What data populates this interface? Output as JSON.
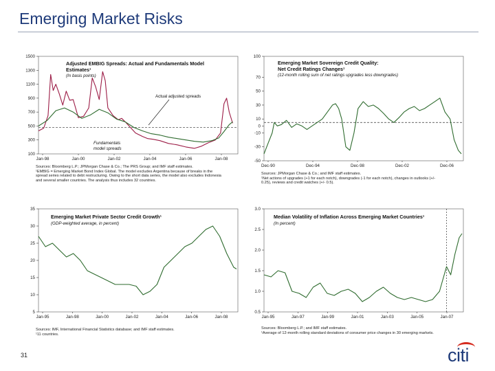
{
  "page": {
    "title": "Emerging Market Risks",
    "page_number": "31",
    "logo_text": "citi"
  },
  "chart_data": [
    {
      "id": "c1",
      "type": "line",
      "title": "Adjusted EMBIG Spreads: Actual and Fundamentals Model Estimates¹",
      "subtitle": "(In basis points)",
      "ylim": [
        100,
        1500
      ],
      "yticks": [
        100,
        300,
        500,
        700,
        900,
        1100,
        1300,
        1500
      ],
      "xticks": [
        "Jan-98",
        "Jan-00",
        "Jan-02",
        "Jan-04",
        "Jan-06",
        "Jan-08"
      ],
      "x_start": 1998,
      "x_end": 2009.5,
      "series": [
        {
          "role": "actual",
          "color": "#9b1b45",
          "x": [
            1998.0,
            1998.3,
            1998.55,
            1998.7,
            1998.85,
            1999.0,
            1999.2,
            1999.4,
            1999.6,
            1999.8,
            2000.0,
            2000.3,
            2000.6,
            2000.9,
            2001.1,
            2001.3,
            2001.5,
            2001.7,
            2001.85,
            2002.0,
            2002.3,
            2002.6,
            2002.8,
            2003.0,
            2003.3,
            2003.6,
            2004.0,
            2004.3,
            2004.6,
            2005.0,
            2005.5,
            2006.0,
            2006.5,
            2007.0,
            2007.4,
            2007.8,
            2008.2,
            2008.5,
            2008.7,
            2008.85,
            2009.0,
            2009.2
          ],
          "values": [
            430,
            470,
            650,
            1240,
            1010,
            1100,
            960,
            800,
            1000,
            870,
            880,
            620,
            640,
            760,
            1190,
            1060,
            880,
            1280,
            1150,
            760,
            650,
            590,
            610,
            560,
            480,
            400,
            350,
            320,
            310,
            290,
            250,
            230,
            200,
            180,
            210,
            260,
            300,
            400,
            820,
            900,
            700,
            540
          ]
        },
        {
          "role": "model",
          "color": "#2e6b2e",
          "x": [
            1998.0,
            1998.5,
            1999.0,
            1999.5,
            2000.0,
            2000.5,
            2001.0,
            2001.5,
            2002.0,
            2002.5,
            2003.0,
            2003.5,
            2004.0,
            2004.5,
            2005.0,
            2005.5,
            2006.0,
            2006.5,
            2007.0,
            2007.5,
            2008.0,
            2008.4,
            2008.7,
            2009.0,
            2009.2
          ],
          "values": [
            500,
            580,
            720,
            760,
            700,
            610,
            660,
            740,
            690,
            600,
            560,
            480,
            430,
            390,
            370,
            340,
            320,
            300,
            280,
            270,
            290,
            330,
            420,
            520,
            560
          ]
        }
      ],
      "reference_y": 480
    },
    {
      "id": "c2",
      "type": "line",
      "title": "Emerging Market Sovereign Credit Quality:",
      "title2": "Net Credit Ratings Changes¹",
      "subtitle": "(12-month rolling sum of net ratings upgrades less downgrades)",
      "ylim": [
        -50,
        100
      ],
      "yticks": [
        -50,
        -30,
        -10,
        0,
        10,
        30,
        50,
        70,
        100
      ],
      "xticks": [
        "Dec-90",
        "Dec-94",
        "Dec-98",
        "Dec-02",
        "Dec-06"
      ],
      "x_start": 1990,
      "x_end": 2009.5,
      "series": [
        {
          "role": "net",
          "color": "#2e6b2e",
          "x": [
            1990.0,
            1990.4,
            1990.8,
            1991.0,
            1991.3,
            1991.7,
            1992.2,
            1992.7,
            1993.2,
            1993.7,
            1994.2,
            1994.7,
            1995.2,
            1995.7,
            1996.2,
            1996.7,
            1997.0,
            1997.3,
            1997.6,
            1998.0,
            1998.4,
            1998.8,
            1999.2,
            1999.7,
            2000.2,
            2000.7,
            2001.2,
            2001.7,
            2002.2,
            2002.7,
            2003.2,
            2003.7,
            2004.2,
            2004.7,
            2005.2,
            2005.7,
            2006.2,
            2006.7,
            2007.2,
            2007.7,
            2008.2,
            2008.6,
            2009.0,
            2009.3
          ],
          "values": [
            -40,
            -25,
            -10,
            5,
            0,
            2,
            8,
            -2,
            3,
            0,
            -5,
            0,
            5,
            10,
            20,
            30,
            32,
            25,
            10,
            -30,
            -35,
            -10,
            25,
            35,
            28,
            30,
            25,
            18,
            10,
            5,
            12,
            20,
            25,
            28,
            22,
            25,
            30,
            35,
            40,
            20,
            10,
            -20,
            -35,
            -40
          ]
        }
      ],
      "reference_y": 5
    },
    {
      "id": "c3",
      "type": "line",
      "title": "Emerging Market Private Sector Credit Growth¹",
      "subtitle": "(GDP-weighted average, in percent)",
      "ylim": [
        5,
        35
      ],
      "yticks": [
        5,
        10,
        15,
        20,
        25,
        30,
        35
      ],
      "xticks": [
        "Jan-95",
        "Jan-98",
        "Jan-00",
        "Jan-02",
        "Jan-04",
        "Jan-06",
        "Jan-08"
      ],
      "x_start": 1995,
      "x_end": 2009.3,
      "series": [
        {
          "role": "growth",
          "color": "#2e6b2e",
          "x": [
            1995.0,
            1995.5,
            1996.0,
            1996.5,
            1997.0,
            1997.5,
            1998.0,
            1998.5,
            1999.0,
            1999.5,
            2000.0,
            2000.5,
            2001.0,
            2001.5,
            2002.0,
            2002.5,
            2003.0,
            2003.5,
            2004.0,
            2004.5,
            2005.0,
            2005.5,
            2006.0,
            2006.5,
            2007.0,
            2007.5,
            2008.0,
            2008.5,
            2009.0,
            2009.2
          ],
          "values": [
            27,
            24,
            25,
            23,
            21,
            22,
            20,
            17,
            16,
            15,
            14,
            13,
            13,
            13,
            12.5,
            10,
            11,
            13,
            18,
            20,
            22,
            24,
            25,
            27,
            29,
            30,
            27,
            22,
            18,
            17.5
          ]
        }
      ]
    },
    {
      "id": "c4",
      "type": "line",
      "title": "Median Volatility of Inflation Across Emerging Market Countries¹",
      "subtitle": "(In percent)",
      "ylim": [
        0.5,
        3.0
      ],
      "yticks": [
        0.5,
        1.0,
        1.5,
        2.0,
        2.5,
        3.0
      ],
      "yticklabels": [
        "0.5",
        "1.0",
        "1.5",
        "2.0",
        "2.5",
        "3.0"
      ],
      "xticks": [
        "Jan-95",
        "Jan-97",
        "Jan-99",
        "Jan-01",
        "Jan-03",
        "Jan-05",
        "Jan-07"
      ],
      "x_start": 1995,
      "x_end": 2009.2,
      "series": [
        {
          "role": "volatility",
          "color": "#2e6b2e",
          "x": [
            1995.0,
            1995.5,
            1996.0,
            1996.5,
            1997.0,
            1997.5,
            1998.0,
            1998.5,
            1999.0,
            1999.5,
            2000.0,
            2000.5,
            2001.0,
            2001.5,
            2002.0,
            2002.5,
            2003.0,
            2003.5,
            2004.0,
            2004.5,
            2005.0,
            2005.5,
            2006.0,
            2006.5,
            2007.0,
            2007.5,
            2008.0,
            2008.3,
            2008.6,
            2008.9,
            2009.1
          ],
          "values": [
            1.4,
            1.35,
            1.5,
            1.45,
            1.0,
            0.95,
            0.85,
            1.1,
            1.2,
            0.95,
            0.9,
            1.0,
            1.05,
            0.95,
            0.75,
            0.85,
            1.0,
            1.1,
            0.95,
            0.85,
            0.8,
            0.85,
            0.8,
            0.75,
            0.8,
            1.0,
            1.6,
            1.4,
            1.9,
            2.3,
            2.4
          ]
        }
      ],
      "reference_x": 2008.0
    }
  ],
  "panels": {
    "c1": {
      "title_line1": "Adjusted EMBIG Spreads: Actual and Fundamentals Model",
      "title_line2": "Estimates¹",
      "subtitle": "(In basis points)",
      "annotation_actual": "Actual adjusted spreads",
      "annotation_model_1": "Fundamentals",
      "annotation_model_2": "model spreads",
      "source_1": "Sources: Bloomberg L.P.; JPMorgan Chase & Co.; The PRS Group; and IMF staff estimates.",
      "source_2": "¹EMBIG = Emerging Market Bond Index Global. The model excludes Argentina because of breaks in the",
      "source_3": "spread series related to debt restructuring. Owing to the short data series, the model also excludes Indonesia",
      "source_4": "and several smaller countries. The analysis thus includes 32 countries."
    },
    "c2": {
      "source_1": "Sources: JPMorgan Chase & Co.; and IMF staff estimates.",
      "source_2": "¹Net actions of upgrades (+1 for each notch), downgrades (-1 for each notch), changes in outlooks (+/-",
      "source_3": "0.25), reviews and credit watches (+/- 0.5)."
    },
    "c3": {
      "source_1": "Sources: IMF, International Financial Statistics database; and IMF staff estimates.",
      "source_2": "¹11 countries."
    },
    "c4": {
      "source_1": "Sources: Bloomberg L.P.; and IMF staff estimates.",
      "source_2": "¹Average of 12-month rolling standard deviations of consumer price changes in 30 emerging markets."
    }
  }
}
